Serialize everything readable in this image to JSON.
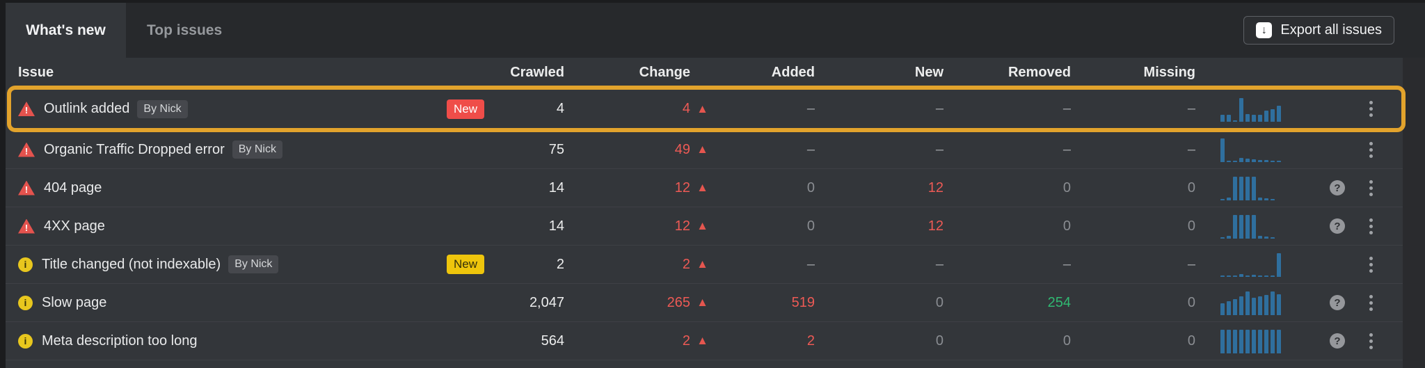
{
  "tabs": [
    {
      "label": "What's new",
      "active": true
    },
    {
      "label": "Top issues",
      "active": false
    }
  ],
  "export_button": {
    "label": "Export all issues",
    "icon": "download-icon"
  },
  "icons": {
    "warning_glyph": "!",
    "info_glyph": "i",
    "help_glyph": "?"
  },
  "table": {
    "columns": [
      "Issue",
      "Crawled",
      "Change",
      "Added",
      "New",
      "Removed",
      "Missing"
    ],
    "rows": [
      {
        "severity": "error",
        "name": "Outlink added",
        "by": "By Nick",
        "new_badge": {
          "label": "New",
          "color": "red"
        },
        "highlighted": true,
        "crawled": "4",
        "change": "4",
        "change_dir": "up",
        "added": {
          "v": "–",
          "c": "dash"
        },
        "new": {
          "v": "–",
          "c": "dash"
        },
        "removed": {
          "v": "–",
          "c": "dash"
        },
        "missing": {
          "v": "–",
          "c": "dash"
        },
        "spark": [
          0.3,
          0.3,
          0.07,
          1,
          0.32,
          0.3,
          0.3,
          0.48,
          0.52,
          0.68
        ],
        "help": false
      },
      {
        "severity": "error",
        "name": "Organic Traffic Dropped error",
        "by": "By Nick",
        "new_badge": null,
        "highlighted": false,
        "crawled": "75",
        "change": "49",
        "change_dir": "up",
        "added": {
          "v": "–",
          "c": "dash"
        },
        "new": {
          "v": "–",
          "c": "dash"
        },
        "removed": {
          "v": "–",
          "c": "dash"
        },
        "missing": {
          "v": "–",
          "c": "dash"
        },
        "spark": [
          1,
          0.07,
          0.07,
          0.18,
          0.14,
          0.12,
          0.1,
          0.1,
          0.07,
          0.05
        ],
        "help": false
      },
      {
        "severity": "error",
        "name": "404 page",
        "by": null,
        "new_badge": null,
        "highlighted": false,
        "crawled": "14",
        "change": "12",
        "change_dir": "up",
        "added": {
          "v": "0",
          "c": "gray"
        },
        "new": {
          "v": "12",
          "c": "red"
        },
        "removed": {
          "v": "0",
          "c": "gray"
        },
        "missing": {
          "v": "0",
          "c": "gray"
        },
        "spark": [
          0.07,
          0.12,
          1,
          1,
          1,
          1,
          0.12,
          0.08,
          0.05
        ],
        "help": true
      },
      {
        "severity": "error",
        "name": "4XX page",
        "by": null,
        "new_badge": null,
        "highlighted": false,
        "crawled": "14",
        "change": "12",
        "change_dir": "up",
        "added": {
          "v": "0",
          "c": "gray"
        },
        "new": {
          "v": "12",
          "c": "red"
        },
        "removed": {
          "v": "0",
          "c": "gray"
        },
        "missing": {
          "v": "0",
          "c": "gray"
        },
        "spark": [
          0.07,
          0.12,
          1,
          1,
          1,
          1,
          0.12,
          0.08,
          0.05
        ],
        "help": true
      },
      {
        "severity": "notice",
        "name": "Title changed (not indexable)",
        "by": "By Nick",
        "new_badge": {
          "label": "New",
          "color": "yellow"
        },
        "highlighted": false,
        "crawled": "2",
        "change": "2",
        "change_dir": "up",
        "added": {
          "v": "–",
          "c": "dash"
        },
        "new": {
          "v": "–",
          "c": "dash"
        },
        "removed": {
          "v": "–",
          "c": "dash"
        },
        "missing": {
          "v": "–",
          "c": "dash"
        },
        "spark": [
          0.06,
          0.06,
          0.06,
          0.11,
          0.06,
          0.09,
          0.06,
          0.06,
          0.06,
          1
        ],
        "help": false
      },
      {
        "severity": "notice",
        "name": "Slow page",
        "by": null,
        "new_badge": null,
        "highlighted": false,
        "crawled": "2,047",
        "change": "265",
        "change_dir": "up",
        "added": {
          "v": "519",
          "c": "red"
        },
        "new": {
          "v": "0",
          "c": "gray"
        },
        "removed": {
          "v": "254",
          "c": "green"
        },
        "missing": {
          "v": "0",
          "c": "gray"
        },
        "spark": [
          0.5,
          0.6,
          0.68,
          0.78,
          1,
          0.74,
          0.8,
          0.84,
          1,
          0.88
        ],
        "help": true
      },
      {
        "severity": "notice",
        "name": "Meta description too long",
        "by": null,
        "new_badge": null,
        "highlighted": false,
        "crawled": "564",
        "change": "2",
        "change_dir": "up",
        "added": {
          "v": "2",
          "c": "red"
        },
        "new": {
          "v": "0",
          "c": "gray"
        },
        "removed": {
          "v": "0",
          "c": "gray"
        },
        "missing": {
          "v": "0",
          "c": "gray"
        },
        "spark": [
          1,
          1,
          1,
          1,
          1,
          1,
          1,
          1,
          1,
          1
        ],
        "help": true
      }
    ]
  },
  "colors": {
    "highlight_ring": "#e2a32c",
    "spark_bar": "#2f6f9e",
    "error_icon": "#e4534e",
    "notice_icon": "#e8c71e",
    "badge_red": "#ef4d49",
    "badge_yellow": "#eec50c",
    "value_red": "#ed5a55",
    "value_green": "#30b972"
  }
}
